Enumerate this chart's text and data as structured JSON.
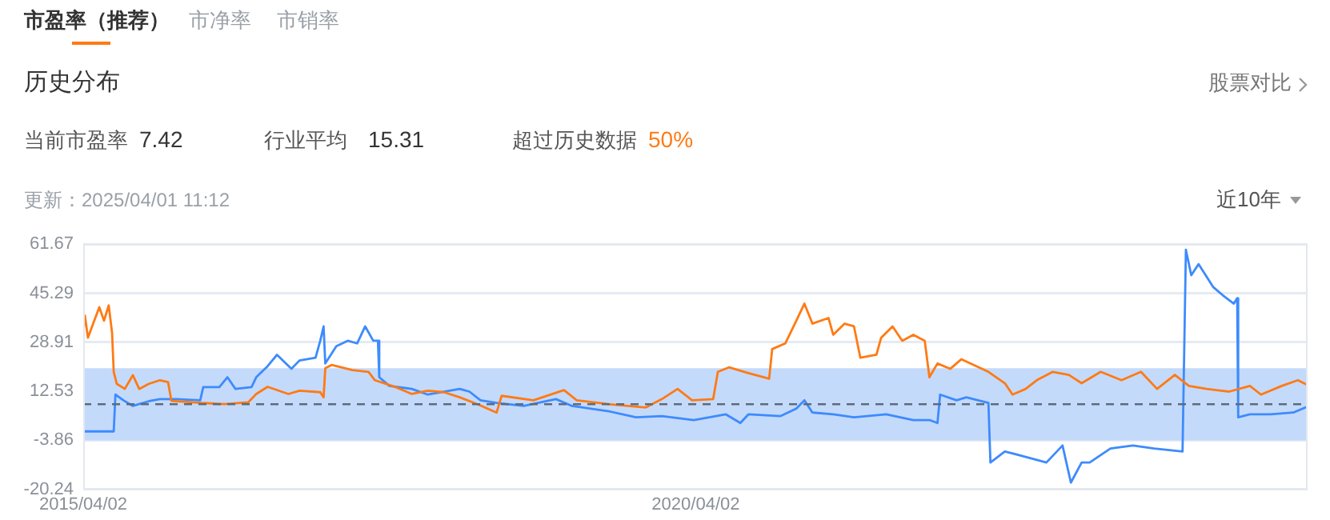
{
  "chart_data": {
    "type": "line",
    "title": "历史分布",
    "annotations": [
      "市盈率（推荐）",
      "市净率",
      "市销率",
      "股票对比",
      "当前市盈率",
      "7.42",
      "行业平均",
      "15.31",
      "超过历史数据",
      "50%",
      "更新：2025/04/01 11:12",
      "近10年"
    ],
    "xlim": [
      "2015-04-02",
      "2025-04-01"
    ],
    "xticks": [
      {
        "value": "2015-04-02",
        "label": "2015/04/02"
      },
      {
        "value": "2020-04-02",
        "label": "2020/04/02"
      }
    ],
    "ylim": [
      -20.24,
      61.67
    ],
    "yticks": [
      -20.24,
      -3.86,
      12.53,
      28.91,
      45.29,
      61.67
    ],
    "grid": "y",
    "legend": false,
    "bands": [
      {
        "axis": "y",
        "from": -3.9,
        "to": 20.2,
        "color": "#c4dafb"
      }
    ],
    "ref_lines": [
      {
        "axis": "y",
        "value": 8.2,
        "color": "#5f6b7a",
        "line_style": "dashed"
      }
    ],
    "series": [
      {
        "color": "#ff7a14",
        "x": [
          "2015-04-02",
          "2015-04-07",
          "2015-04-16",
          "2015-05-01",
          "2015-05-20",
          "2015-06-03",
          "2015-06-17",
          "2015-06-27",
          "2015-07-02",
          "2015-07-11",
          "2015-08-04",
          "2015-08-28",
          "2015-09-16",
          "2015-10-15",
          "2015-11-17",
          "2015-12-11",
          "2015-12-21",
          "2016-02-21",
          "2016-05-27",
          "2016-08-06",
          "2016-08-30",
          "2016-10-03",
          "2016-12-04",
          "2017-01-06",
          "2017-03-09",
          "2017-03-19",
          "2017-03-24",
          "2017-04-12",
          "2017-06-13",
          "2017-07-31",
          "2017-08-19",
          "2017-10-20",
          "2017-12-07",
          "2018-01-24",
          "2018-03-13",
          "2018-04-29",
          "2018-06-21",
          "2018-08-17",
          "2018-09-01",
          "2018-12-05",
          "2019-03-06",
          "2019-04-13",
          "2019-07-18",
          "2019-11-05",
          "2019-12-23",
          "2020-02-08",
          "2020-03-22",
          "2020-05-24",
          "2020-06-07",
          "2020-07-10",
          "2020-09-06",
          "2020-11-07",
          "2020-11-16",
          "2020-12-25",
          "2021-01-27",
          "2021-02-20",
          "2021-03-16",
          "2021-05-03",
          "2021-05-17",
          "2021-06-20",
          "2021-07-18",
          "2021-08-06",
          "2021-09-23",
          "2021-10-07",
          "2021-11-10",
          "2021-12-09",
          "2022-01-11",
          "2022-02-14",
          "2022-02-28",
          "2022-03-24",
          "2022-05-01",
          "2022-06-03",
          "2022-08-23",
          "2022-10-11",
          "2022-11-03",
          "2022-12-12",
          "2023-01-14",
          "2023-03-03",
          "2023-04-20",
          "2023-05-28",
          "2023-07-24",
          "2023-09-24",
          "2023-11-21",
          "2024-01-08",
          "2024-03-01",
          "2024-04-12",
          "2024-06-04",
          "2024-08-10",
          "2024-10-11",
          "2024-11-13",
          "2025-01-14",
          "2025-03-03",
          "2025-04-01"
        ],
        "values": [
          32.1,
          37.8,
          30.4,
          34.9,
          40.6,
          36.1,
          41.2,
          32.1,
          19.0,
          15.0,
          13.3,
          17.9,
          13.3,
          15.0,
          16.2,
          15.6,
          9.3,
          8.8,
          8.2,
          8.8,
          11.6,
          14.0,
          11.6,
          12.7,
          12.2,
          10.5,
          20.2,
          21.3,
          19.6,
          19.0,
          16.2,
          13.9,
          11.6,
          12.7,
          12.2,
          10.5,
          8.2,
          5.4,
          11.0,
          9.5,
          12.9,
          9.5,
          8.2,
          7.1,
          9.9,
          13.3,
          9.5,
          9.9,
          19.0,
          20.5,
          18.6,
          16.7,
          26.6,
          28.5,
          36.1,
          41.8,
          35.1,
          37.0,
          31.4,
          35.1,
          34.2,
          23.7,
          24.7,
          30.4,
          34.2,
          29.4,
          31.4,
          29.4,
          17.2,
          21.8,
          20.0,
          23.2,
          19.0,
          15.2,
          11.4,
          13.3,
          16.2,
          19.0,
          18.0,
          15.2,
          19.0,
          16.2,
          19.0,
          13.3,
          18.0,
          14.3,
          13.3,
          12.4,
          14.3,
          11.4,
          14.3,
          16.2,
          14.6
        ]
      },
      {
        "color": "#3d8bfd",
        "x": [
          "2015-04-02",
          "2015-07-02",
          "2015-07-07",
          "2015-07-31",
          "2015-08-28",
          "2015-10-15",
          "2015-11-17",
          "2016-01-04",
          "2016-03-16",
          "2016-03-25",
          "2016-05-12",
          "2016-06-05",
          "2016-06-29",
          "2016-08-16",
          "2016-08-30",
          "2016-10-03",
          "2016-10-31",
          "2016-12-13",
          "2017-01-06",
          "2017-02-23",
          "2017-03-09",
          "2017-03-19",
          "2017-03-24",
          "2017-04-26",
          "2017-05-30",
          "2017-06-27",
          "2017-07-21",
          "2017-08-14",
          "2017-08-28",
          "2017-09-01",
          "2017-10-01",
          "2017-12-07",
          "2018-01-24",
          "2018-03-13",
          "2018-04-29",
          "2018-05-28",
          "2018-06-30",
          "2018-08-17",
          "2018-11-06",
          "2019-02-10",
          "2019-03-30",
          "2019-07-18",
          "2019-10-07",
          "2019-12-23",
          "2020-03-27",
          "2020-07-01",
          "2020-08-13",
          "2020-09-06",
          "2020-12-10",
          "2021-01-27",
          "2021-02-20",
          "2021-03-16",
          "2021-05-17",
          "2021-07-18",
          "2021-10-22",
          "2022-01-11",
          "2022-02-28",
          "2022-03-24",
          "2022-04-01",
          "2022-05-20",
          "2022-06-18",
          "2022-08-23",
          "2022-08-29",
          "2022-10-11",
          "2022-12-12",
          "2023-02-12",
          "2023-04-01",
          "2023-04-26",
          "2023-05-28",
          "2023-06-21",
          "2023-08-22",
          "2023-10-28",
          "2023-12-30",
          "2024-03-24",
          "2024-04-03",
          "2024-04-19",
          "2024-05-11",
          "2024-06-23",
          "2024-07-22",
          "2024-08-24",
          "2024-09-03",
          "2024-09-06",
          "2024-10-11",
          "2024-12-12",
          "2025-02-17",
          "2025-04-01"
        ],
        "values": [
          -0.9,
          -0.9,
          11.4,
          9.5,
          7.6,
          9.2,
          9.9,
          9.9,
          9.5,
          13.9,
          13.9,
          17.2,
          13.3,
          13.9,
          17.2,
          20.9,
          24.7,
          20.0,
          22.8,
          23.7,
          29.4,
          34.2,
          21.8,
          27.6,
          29.4,
          28.5,
          34.2,
          29.4,
          29.4,
          17.2,
          14.3,
          13.3,
          11.4,
          12.4,
          13.3,
          12.4,
          9.5,
          8.6,
          7.6,
          9.9,
          7.6,
          5.8,
          3.8,
          4.2,
          2.9,
          4.8,
          1.9,
          4.8,
          4.2,
          6.7,
          9.5,
          5.4,
          4.8,
          3.8,
          4.8,
          2.9,
          2.9,
          1.9,
          11.4,
          9.5,
          10.5,
          8.6,
          -11.3,
          -7.6,
          -9.4,
          -11.3,
          -5.6,
          -18.0,
          -11.3,
          -11.3,
          -6.6,
          -5.6,
          -6.6,
          -7.6,
          59.8,
          51.3,
          55.0,
          47.4,
          44.6,
          41.8,
          43.6,
          3.8,
          4.8,
          4.8,
          5.4,
          7.4
        ]
      }
    ]
  }
}
